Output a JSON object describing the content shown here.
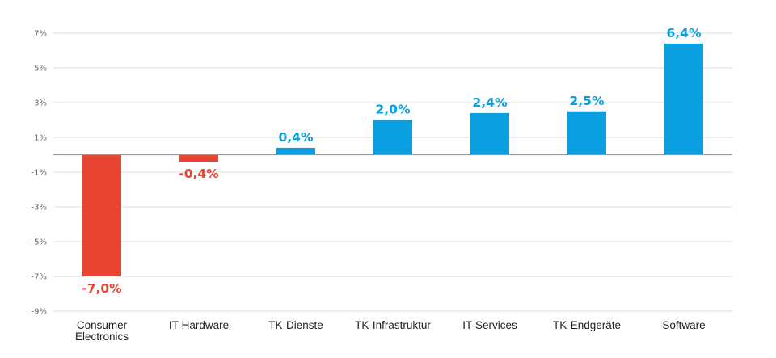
{
  "chart_data": {
    "type": "bar",
    "categories": [
      [
        "Consumer",
        "Electronics"
      ],
      [
        "IT-Hardware"
      ],
      [
        "TK-Dienste"
      ],
      [
        "TK-Infrastruktur"
      ],
      [
        "IT-Services"
      ],
      [
        "TK-Endgeräte"
      ],
      [
        "Software"
      ]
    ],
    "values": [
      -7.0,
      -0.4,
      0.4,
      2.0,
      2.4,
      2.5,
      6.4
    ],
    "value_labels": [
      "-7,0%",
      "-0,4%",
      "0,4%",
      "2,0%",
      "2,4%",
      "2,5%",
      "6,4%"
    ],
    "y_ticks": [
      7,
      5,
      3,
      1,
      -1,
      -3,
      -5,
      -7,
      -9
    ],
    "y_tick_labels": [
      "7%",
      "5%",
      "3%",
      "1%",
      "-1%",
      "-3%",
      "-5%",
      "-7%",
      "-9%"
    ],
    "ylim": [
      -9,
      7
    ],
    "grid": true,
    "legend": "none",
    "colors": {
      "positive": "#0a9fe0",
      "negative": "#e94431",
      "grid": "#dddddd",
      "zero_line": "#9a9a9a",
      "tick_text": "#666666",
      "category_text": "#222222"
    }
  }
}
